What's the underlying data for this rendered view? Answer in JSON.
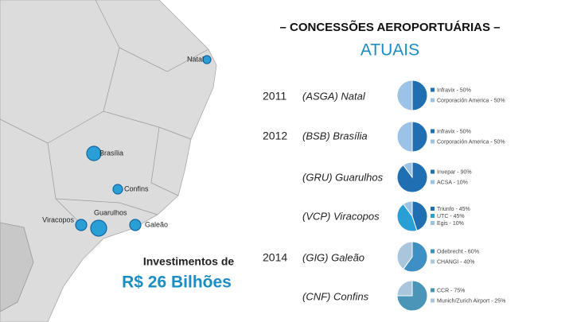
{
  "slide": {
    "title": "– CONCESSÕES AEROPORTUÁRIAS –",
    "subtitle": "ATUAIS",
    "investment_label": "Investimentos de",
    "investment_value": "R$ 26 Bilhões",
    "map_points": [
      "Natal",
      "Brasília",
      "Confins",
      "Viracopos",
      "Guarulhos",
      "Galeão"
    ],
    "years": [
      "2011",
      "2012",
      "2014"
    ],
    "airports": [
      "(ASGA) Natal",
      "(BSB) Brasília",
      "(GRU) Guarulhos",
      "(VCP) Viracopos",
      "(GIG) Galeão",
      "(CNF) Confins"
    ]
  },
  "chart_data": [
    {
      "type": "pie",
      "categories": [
        "Infravix - 50%",
        "Corporación America - 50%"
      ],
      "values": [
        50,
        50
      ],
      "colors": [
        "#1f6fb2",
        "#9cc3e6"
      ]
    },
    {
      "type": "pie",
      "categories": [
        "Infravix - 50%",
        "Corporación America - 50%"
      ],
      "values": [
        50,
        50
      ],
      "colors": [
        "#1f6fb2",
        "#9cc3e6"
      ]
    },
    {
      "type": "pie",
      "categories": [
        "Invepar - 90%",
        "ACSA - 10%"
      ],
      "values": [
        90,
        10
      ],
      "colors": [
        "#1f6fb2",
        "#9cc3e6"
      ]
    },
    {
      "type": "pie",
      "categories": [
        "Triunfo - 45%",
        "UTC - 45%",
        "Egis - 10%"
      ],
      "values": [
        45,
        45,
        10
      ],
      "colors": [
        "#1f6fb2",
        "#2a9fd6",
        "#9cc3e6"
      ]
    },
    {
      "type": "pie",
      "categories": [
        "Odebrecht - 60%",
        "CHANGI - 40%"
      ],
      "values": [
        60,
        40
      ],
      "colors": [
        "#3d8fc4",
        "#a9c6dc"
      ]
    },
    {
      "type": "pie",
      "categories": [
        "CCR - 75%",
        "Munich/Zurich Airport - 25%"
      ],
      "values": [
        75,
        25
      ],
      "colors": [
        "#4a95b8",
        "#a9c6dc"
      ]
    }
  ]
}
